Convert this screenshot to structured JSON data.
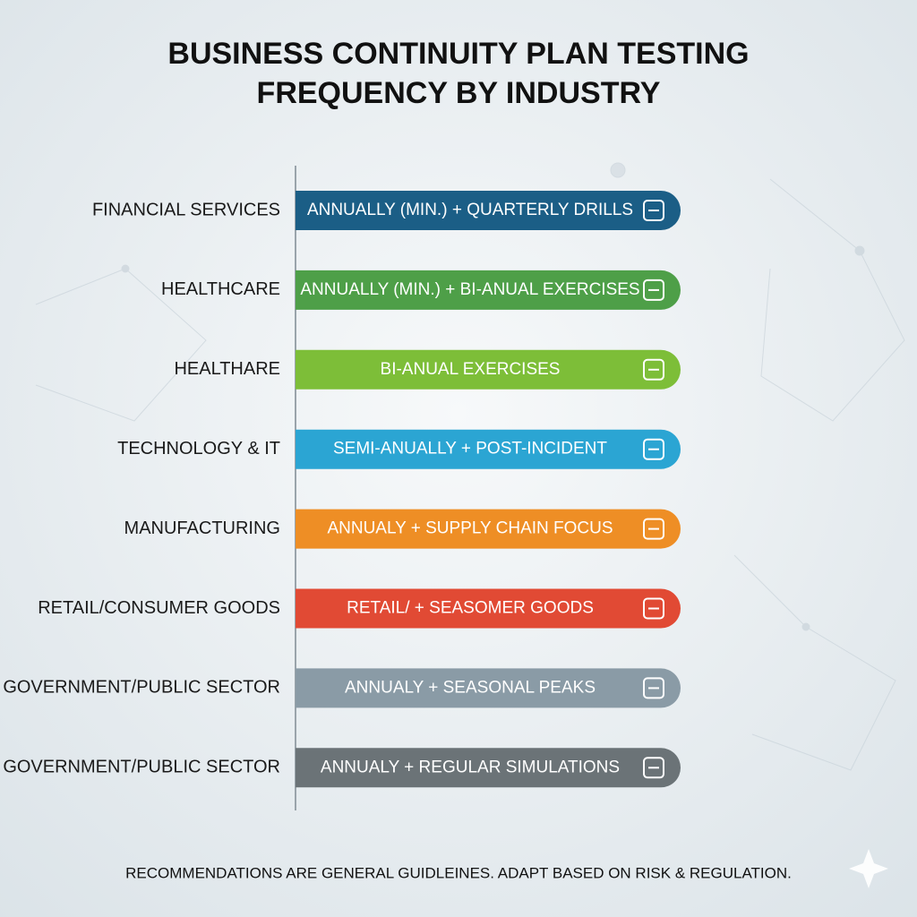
{
  "header": {
    "title_lines": [
      "BUSINESS CONTINUITY PLAN TESTING",
      "FREQUENCY BY INDUSTRY"
    ]
  },
  "rows": [
    {
      "label": "FINANCIAL SERVICES",
      "text": "ANNUALLY (MIN.) + QUARTERLY DRILLS",
      "color": "#1b5e86"
    },
    {
      "label": "HEALTHCARE",
      "text": "ANNUALLY (MIN.) + BI-ANUAL EXERCISES",
      "color": "#4e9f48"
    },
    {
      "label": "HEALTHARE",
      "text": "BI-ANUAL EXERCISES",
      "color": "#7dbe38"
    },
    {
      "label": "TECHNOLOGY & IT",
      "text": "SEMI-ANUALLY + POST-INCIDENT",
      "color": "#2ba5d3"
    },
    {
      "label": "MANUFACTURING",
      "text": "ANNUALY + SUPPLY CHAIN FOCUS",
      "color": "#ee8e25"
    },
    {
      "label": "RETAIL/CONSUMER GOODS",
      "text": "RETAIL/ + SEASOMER GOODS",
      "color": "#e14a34"
    },
    {
      "label": "GOVERNMENT/PUBLIC SECTOR",
      "text": "ANNUALY + SEASONAL PEAKS",
      "color": "#8a9ba6"
    },
    {
      "label": "GOVERNMENT/PUBLIC SECTOR",
      "text": "ANNUALY + REGULAR SIMULATIONS",
      "color": "#6b7377"
    }
  ],
  "footer": {
    "note": "RECOMMENDATIONS ARE GENERAL GUIDLEINES. ADAPT BASED ON RISK & REGULATION."
  }
}
